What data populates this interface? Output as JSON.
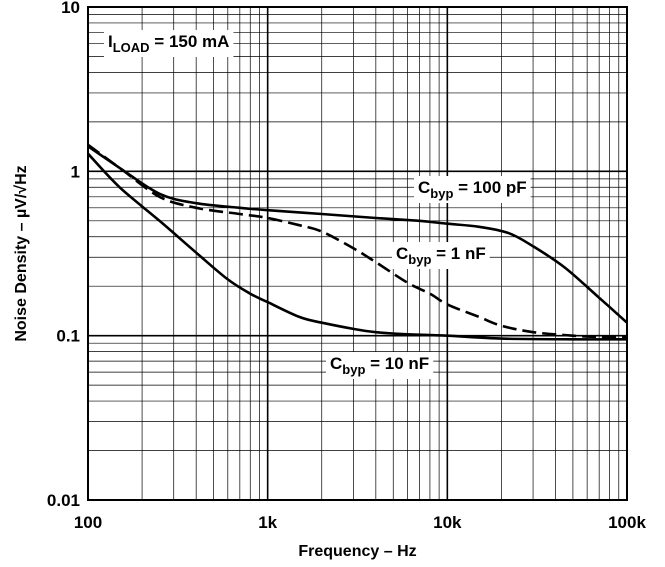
{
  "chart_data": {
    "type": "line",
    "xscale": "log",
    "yscale": "log",
    "xlim": [
      100,
      100000
    ],
    "ylim": [
      0.01,
      10
    ],
    "grid": true,
    "xlabel": "Frequency – Hz",
    "ylabel": "Noise Density – µV/√Hz",
    "xticks": [
      {
        "value": 100,
        "label": "100"
      },
      {
        "value": 1000,
        "label": "1k"
      },
      {
        "value": 10000,
        "label": "10k"
      },
      {
        "value": 100000,
        "label": "100k"
      }
    ],
    "yticks": [
      {
        "value": 0.01,
        "label": "0.01"
      },
      {
        "value": 0.1,
        "label": "0.1"
      },
      {
        "value": 1,
        "label": "1"
      },
      {
        "value": 10,
        "label": "10"
      }
    ],
    "condition": {
      "main": "I",
      "sub": "LOAD",
      "tail": " = 150 mA"
    },
    "series": [
      {
        "name": "Cbyp = 100 pF",
        "label": {
          "main": "C",
          "sub": "byp",
          "tail": " = 100 pF"
        },
        "style": "solid",
        "x": [
          100,
          150,
          250,
          400,
          700,
          1000,
          2000,
          4000,
          7000,
          10000,
          15000,
          22000,
          30000,
          45000,
          70000,
          100000
        ],
        "y": [
          1.42,
          1.05,
          0.73,
          0.64,
          0.6,
          0.58,
          0.55,
          0.52,
          0.5,
          0.48,
          0.46,
          0.42,
          0.35,
          0.26,
          0.17,
          0.12
        ]
      },
      {
        "name": "Cbyp = 1 nF",
        "label": {
          "main": "C",
          "sub": "byp",
          "tail": " = 1 nF"
        },
        "style": "dashed",
        "x": [
          100,
          150,
          250,
          400,
          700,
          1000,
          1500,
          2000,
          3000,
          4000,
          6000,
          8000,
          10000,
          15000,
          20000,
          30000,
          50000,
          70000,
          100000
        ],
        "y": [
          1.45,
          1.05,
          0.7,
          0.6,
          0.55,
          0.52,
          0.47,
          0.43,
          0.34,
          0.28,
          0.21,
          0.18,
          0.155,
          0.13,
          0.115,
          0.105,
          0.1,
          0.098,
          0.097
        ]
      },
      {
        "name": "Cbyp = 10 nF",
        "label": {
          "main": "C",
          "sub": "byp",
          "tail": " = 10 nF"
        },
        "style": "solid",
        "x": [
          100,
          150,
          250,
          400,
          600,
          800,
          1000,
          1500,
          2000,
          3000,
          4000,
          6000,
          10000,
          20000,
          50000,
          100000
        ],
        "y": [
          1.28,
          0.8,
          0.5,
          0.32,
          0.22,
          0.18,
          0.16,
          0.13,
          0.12,
          0.11,
          0.105,
          0.102,
          0.1,
          0.096,
          0.095,
          0.095
        ]
      }
    ]
  }
}
